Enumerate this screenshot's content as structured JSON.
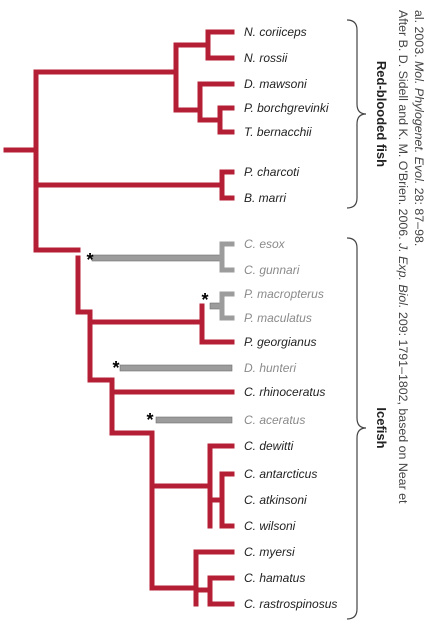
{
  "colors": {
    "red_branch": "#b51f35",
    "gray_branch": "#9c9c9c",
    "text_dark": "#222222",
    "text_gray": "#8a8a8a",
    "bracket": "#444444",
    "asterisk": "#000000"
  },
  "taxa": [
    {
      "id": "n-coriiceps",
      "label": "N. coriiceps",
      "group": "red"
    },
    {
      "id": "n-rossii",
      "label": "N. rossii",
      "group": "red"
    },
    {
      "id": "d-mawsoni",
      "label": "D. mawsoni",
      "group": "red"
    },
    {
      "id": "p-borchgrevinki",
      "label": "P. borchgrevinki",
      "group": "red"
    },
    {
      "id": "t-bernacchii",
      "label": "T. bernacchii",
      "group": "red"
    },
    {
      "id": "p-charcoti",
      "label": "P. charcoti",
      "group": "red"
    },
    {
      "id": "b-marri",
      "label": "B. marri",
      "group": "red"
    },
    {
      "id": "c-esox",
      "label": "C. esox",
      "group": "gray"
    },
    {
      "id": "c-gunnari",
      "label": "C. gunnari",
      "group": "gray"
    },
    {
      "id": "p-macropterus",
      "label": "P. macropterus",
      "group": "gray"
    },
    {
      "id": "p-maculatus",
      "label": "P. maculatus",
      "group": "gray"
    },
    {
      "id": "p-georgianus",
      "label": "P. georgianus",
      "group": "red"
    },
    {
      "id": "d-hunteri",
      "label": "D. hunteri",
      "group": "gray"
    },
    {
      "id": "c-rhinoceratus",
      "label": "C. rhinoceratus",
      "group": "red"
    },
    {
      "id": "c-aceratus",
      "label": "C. aceratus",
      "group": "gray"
    },
    {
      "id": "c-dewitti",
      "label": "C. dewitti",
      "group": "red"
    },
    {
      "id": "c-antarcticus",
      "label": "C. antarcticus",
      "group": "red"
    },
    {
      "id": "c-atkinsoni",
      "label": "C. atkinsoni",
      "group": "red"
    },
    {
      "id": "c-wilsoni",
      "label": "C. wilsoni",
      "group": "red"
    },
    {
      "id": "c-myersi",
      "label": "C. myersi",
      "group": "red"
    },
    {
      "id": "c-hamatus",
      "label": "C. hamatus",
      "group": "red"
    },
    {
      "id": "c-rastrospinosus",
      "label": "C. rastrospinosus",
      "group": "red"
    }
  ],
  "groups": {
    "red_blooded": "Red-blooded fish",
    "icefish": "Icefish"
  },
  "asterisk": "*",
  "citation": {
    "line1_plain_a": "After B. D. Sidell and K. M. O'Brien. 2006. ",
    "line1_italic": "J. Exp. Biol.",
    "line1_plain_b": " 209: 1791–1802, based on Near et",
    "line2_plain_a": "al. 2003. ",
    "line2_italic": "Mol. Phylogenet. Evol.",
    "line2_plain_b": " 28: 87–98."
  }
}
